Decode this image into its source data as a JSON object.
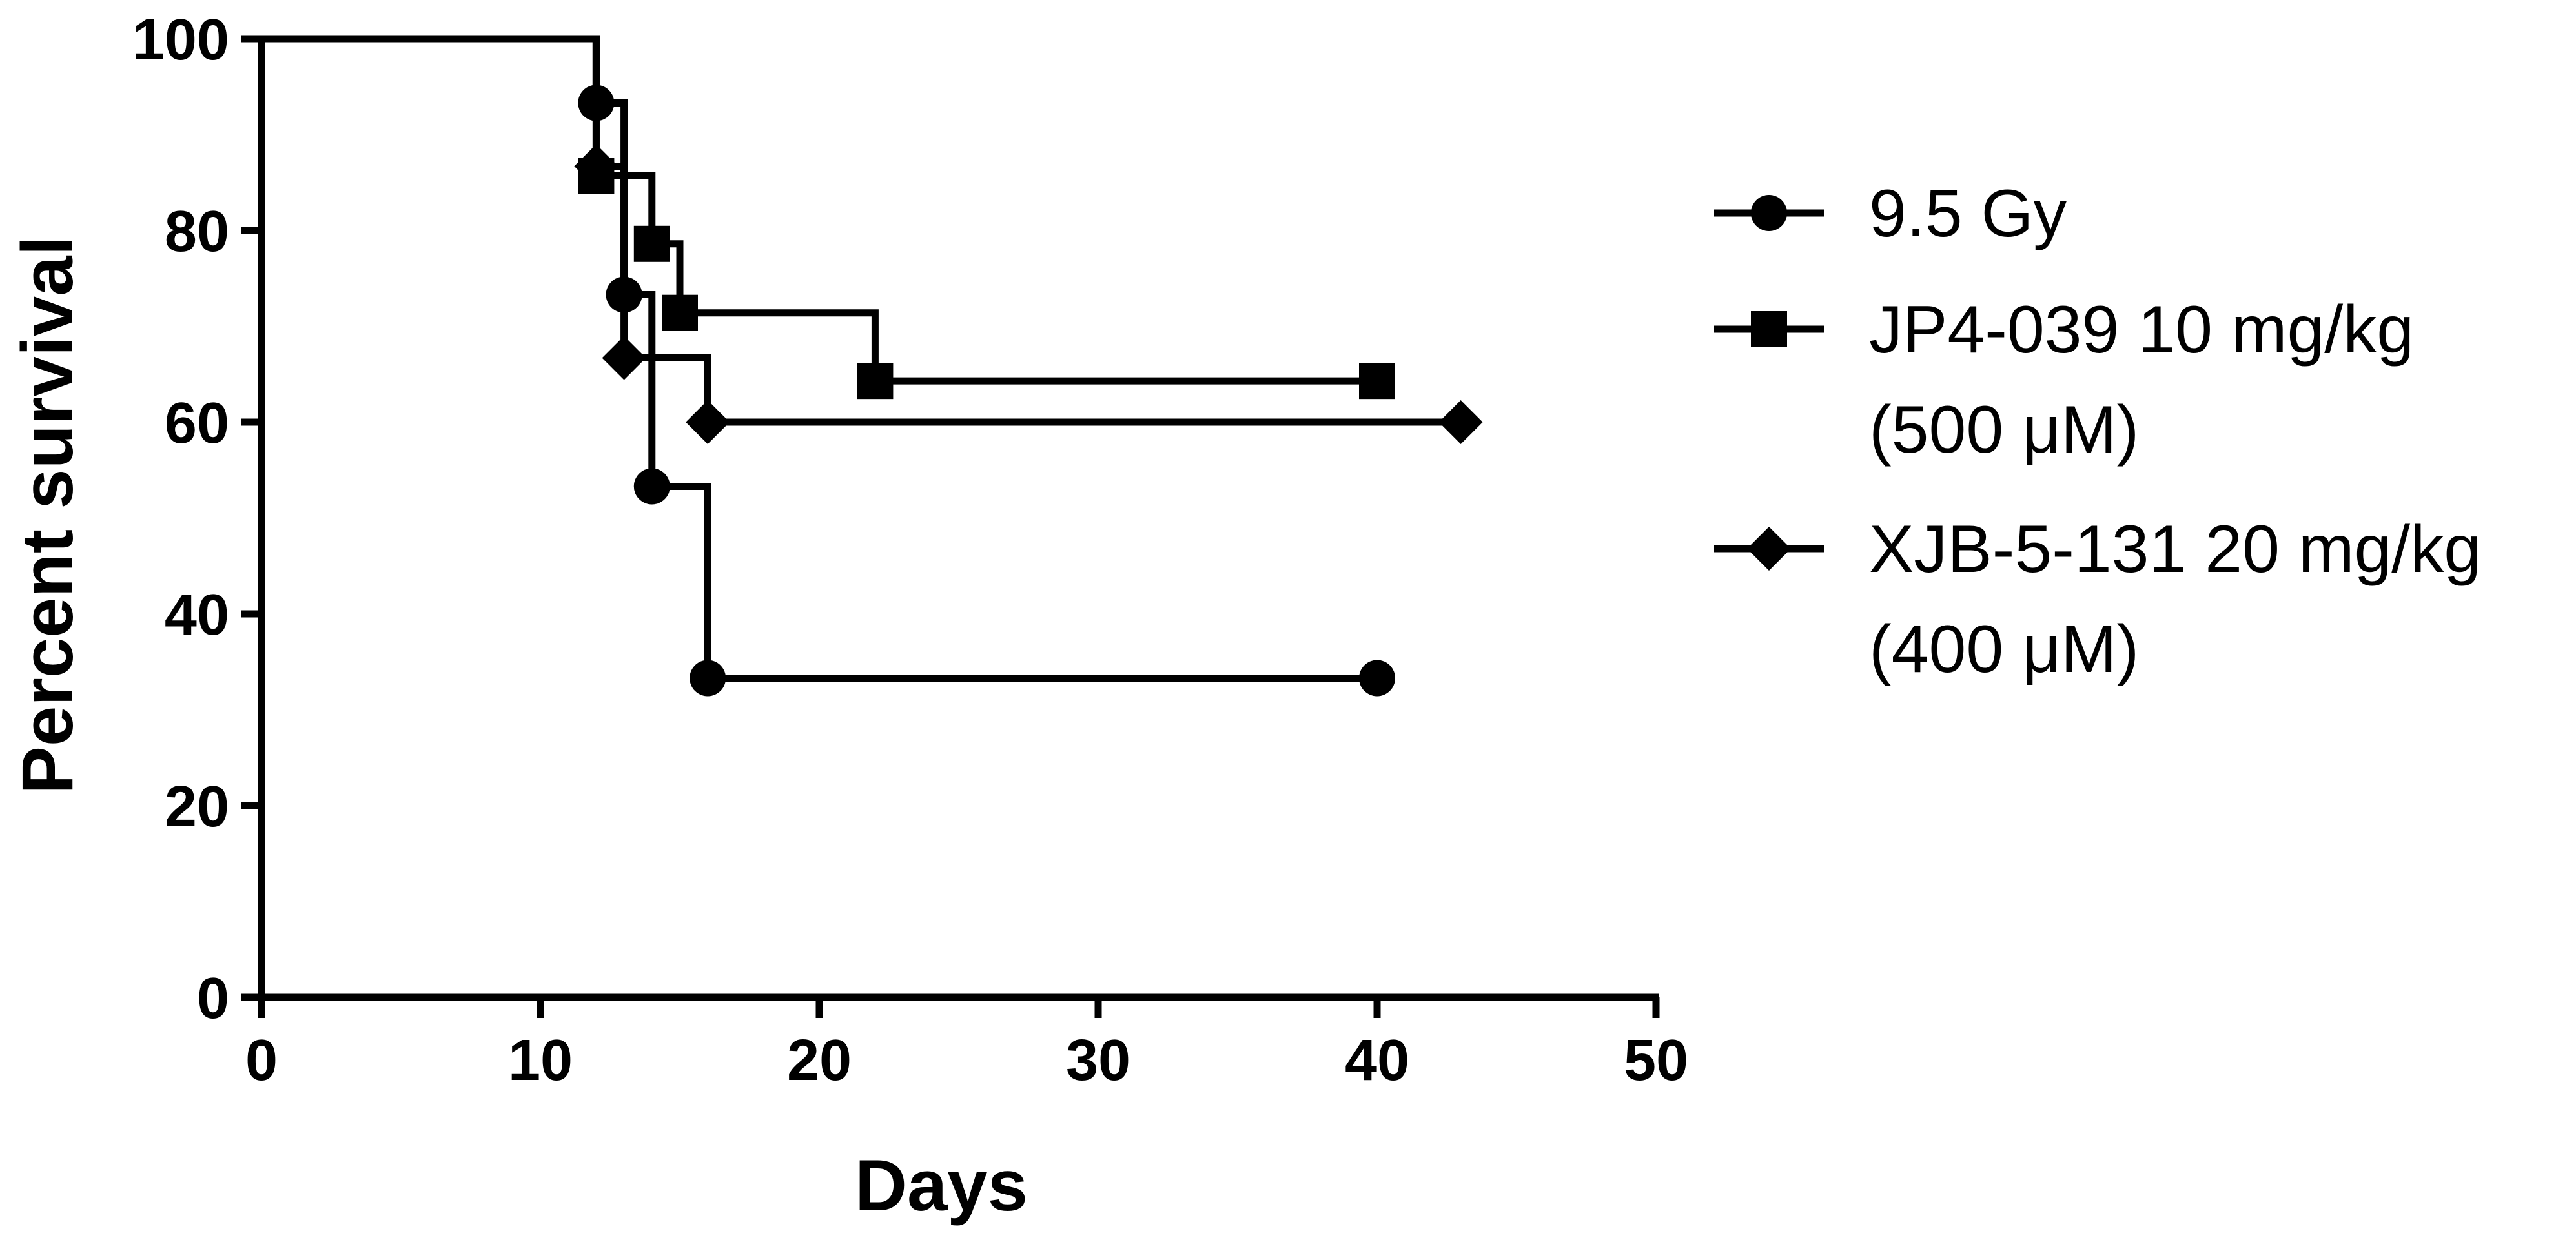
{
  "chart_data": {
    "type": "line",
    "title": "",
    "xlabel": "Days",
    "ylabel": "Percent survival",
    "xlim": [
      0,
      50
    ],
    "ylim": [
      0,
      100
    ],
    "xticks": [
      "0",
      "10",
      "20",
      "30",
      "40",
      "50"
    ],
    "yticks": [
      "0",
      "20",
      "40",
      "60",
      "80",
      "100"
    ],
    "grid": false,
    "legend_position": "right",
    "step": true,
    "series": [
      {
        "name": "9.5 Gy",
        "name_lines": [
          "9.5 Gy"
        ],
        "marker": "circle",
        "color": "#000000",
        "x": [
          0,
          12,
          13,
          14,
          16,
          40
        ],
        "y": [
          100,
          93.3,
          73.3,
          53.3,
          33.3,
          33.3
        ],
        "marked": [
          false,
          true,
          true,
          true,
          true,
          true
        ]
      },
      {
        "name": "JP4-039 10 mg/kg (500 μM)",
        "name_lines": [
          "JP4-039 10 mg/kg",
          "(500 μM)"
        ],
        "marker": "square",
        "color": "#000000",
        "x": [
          0,
          12,
          14,
          15,
          22,
          40
        ],
        "y": [
          100,
          85.7,
          78.6,
          71.4,
          64.3,
          64.3
        ],
        "marked": [
          false,
          true,
          true,
          true,
          true,
          true
        ]
      },
      {
        "name": "XJB-5-131 20 mg/kg (400 μM)",
        "name_lines": [
          "XJB-5-131 20 mg/kg",
          "(400 μM)"
        ],
        "marker": "diamond",
        "color": "#000000",
        "x": [
          0,
          12,
          13,
          16,
          43
        ],
        "y": [
          100,
          86.7,
          66.7,
          60,
          60
        ],
        "marked": [
          false,
          true,
          true,
          true,
          true
        ]
      }
    ]
  }
}
